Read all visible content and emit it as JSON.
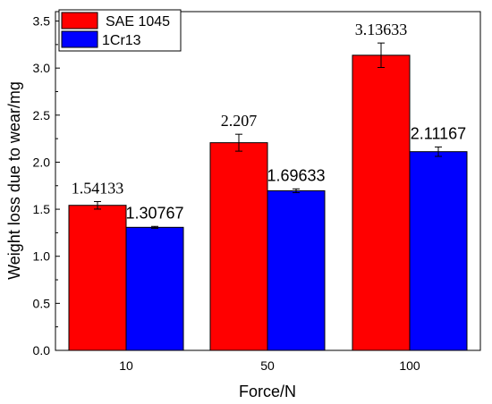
{
  "chart_data": {
    "type": "bar",
    "categories": [
      "10",
      "50",
      "100"
    ],
    "series": [
      {
        "name": "SAE 1045",
        "color": "#ff0000",
        "values": [
          1.54133,
          2.207,
          3.13633
        ],
        "errors": [
          0.04,
          0.09,
          0.13
        ],
        "value_labels": [
          "1.54133",
          "2.207",
          "3.13633"
        ]
      },
      {
        "name": "1Cr13",
        "color": "#0000ff",
        "values": [
          1.30767,
          1.69633,
          2.11167
        ],
        "errors": [
          0.01,
          0.02,
          0.05
        ],
        "value_labels": [
          "1.30767",
          "1.69633",
          "2.11167"
        ]
      }
    ],
    "xlabel": "Force/N",
    "ylabel": "Weight loss due to wear/mg",
    "ylim": [
      0,
      3.6
    ],
    "yticks": [
      "0.0",
      "0.5",
      "1.0",
      "1.5",
      "2.0",
      "2.5",
      "3.0",
      "3.5"
    ],
    "grid": false,
    "legend_position": "top-left"
  }
}
